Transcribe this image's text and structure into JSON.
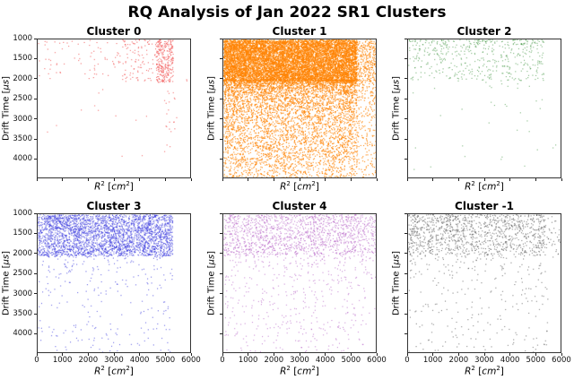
{
  "figure": {
    "background": "#ffffff"
  },
  "chart_data": {
    "type": "scatter",
    "suptitle": "RQ Analysis of Jan 2022 SR1 Clusters",
    "grid": {
      "rows": 2,
      "cols": 3
    },
    "axes": {
      "xlabel": {
        "var": "R",
        "var_exp": "2",
        "open": " [",
        "unit": "cm",
        "unit_exp": "2",
        "close": "]"
      },
      "ylabel": {
        "prefix": "Drift Time [",
        "unit": "μs",
        "suffix": "]"
      },
      "xlim": [
        0,
        6000
      ],
      "ylim": [
        4480,
        1000
      ],
      "y_inverted": true,
      "xticks": [
        0,
        1000,
        2000,
        3000,
        4000,
        5000,
        6000
      ],
      "yticks": [
        1000,
        1500,
        2000,
        2500,
        3000,
        3500,
        4000
      ],
      "xtick_labels_shown": "bottom row only",
      "ytick_labels_shown": "left column only",
      "grid_lines": false
    },
    "subplots": [
      {
        "title": "Cluster 0",
        "color": "#ee3333",
        "alpha": 0.55,
        "marker_px": 1.2,
        "seed": 11,
        "regions": [
          {
            "x0": 0,
            "x1": 5300,
            "y0": 1000,
            "y1": 2050,
            "n": 115,
            "bias": 1.2
          },
          {
            "x0": 3300,
            "x1": 4750,
            "y0": 1000,
            "y1": 2060,
            "n": 75,
            "bias": 1.1
          },
          {
            "x0": 4650,
            "x1": 5320,
            "y0": 1000,
            "y1": 2070,
            "n": 270,
            "bias": 1.0
          },
          {
            "x0": 4900,
            "x1": 5450,
            "y0": 2070,
            "y1": 3950,
            "n": 22,
            "bias": 1.2
          },
          {
            "x0": 300,
            "x1": 4600,
            "y0": 2100,
            "y1": 4050,
            "n": 12,
            "bias": 1.0
          },
          {
            "x0": 5820,
            "x1": 5880,
            "y0": 1980,
            "y1": 2040,
            "n": 2,
            "bias": 1.0
          }
        ]
      },
      {
        "title": "Cluster 1",
        "color": "#ff8405",
        "alpha": 0.78,
        "marker_px": 1.2,
        "seed": 22,
        "regions": [
          {
            "x0": 0,
            "x1": 5240,
            "y0": 1000,
            "y1": 2010,
            "n": 9500,
            "bias": 1.0
          },
          {
            "x0": 0,
            "x1": 5240,
            "y0": 2010,
            "y1": 4470,
            "n": 5200,
            "bias": 1.9
          },
          {
            "x0": 5240,
            "x1": 6000,
            "y0": 1000,
            "y1": 2010,
            "n": 280,
            "bias": 1.0
          },
          {
            "x0": 5240,
            "x1": 6000,
            "y0": 2010,
            "y1": 4470,
            "n": 230,
            "bias": 1.6
          }
        ]
      },
      {
        "title": "Cluster 2",
        "color": "#2f8b2f",
        "alpha": 0.5,
        "marker_px": 1.2,
        "seed": 33,
        "regions": [
          {
            "x0": 0,
            "x1": 5320,
            "y0": 1000,
            "y1": 2030,
            "n": 480,
            "bias": 1.5
          },
          {
            "x0": 0,
            "x1": 5320,
            "y0": 2030,
            "y1": 4300,
            "n": 34,
            "bias": 1.3
          },
          {
            "x0": 5500,
            "x1": 5900,
            "y0": 3600,
            "y1": 4000,
            "n": 2,
            "bias": 1.0
          }
        ]
      },
      {
        "title": "Cluster 3",
        "color": "#3333dd",
        "alpha": 0.55,
        "marker_px": 1.2,
        "seed": 44,
        "regions": [
          {
            "x0": 0,
            "x1": 5290,
            "y0": 1000,
            "y1": 2040,
            "n": 3100,
            "bias": 1.0
          },
          {
            "x0": 0,
            "x1": 5290,
            "y0": 2040,
            "y1": 4480,
            "n": 260,
            "bias": 1.6
          }
        ]
      },
      {
        "title": "Cluster 4",
        "color": "#ad4fbf",
        "alpha": 0.5,
        "marker_px": 1.2,
        "seed": 55,
        "regions": [
          {
            "x0": 0,
            "x1": 5300,
            "y0": 1000,
            "y1": 2010,
            "n": 1280,
            "bias": 1.05
          },
          {
            "x0": 5300,
            "x1": 6000,
            "y0": 1000,
            "y1": 2010,
            "n": 130,
            "bias": 1.0
          },
          {
            "x0": 0,
            "x1": 5600,
            "y0": 2010,
            "y1": 4480,
            "n": 450,
            "bias": 1.4
          },
          {
            "x0": 5600,
            "x1": 6000,
            "y0": 2010,
            "y1": 3500,
            "n": 15,
            "bias": 1.0
          }
        ]
      },
      {
        "title": "Cluster -1",
        "color": "#404040",
        "alpha": 0.5,
        "marker_px": 1.2,
        "seed": 66,
        "regions": [
          {
            "x0": 0,
            "x1": 5380,
            "y0": 1000,
            "y1": 2010,
            "n": 1100,
            "bias": 1.15
          },
          {
            "x0": 5380,
            "x1": 6000,
            "y0": 1000,
            "y1": 2100,
            "n": 35,
            "bias": 1.0
          },
          {
            "x0": 0,
            "x1": 5500,
            "y0": 2010,
            "y1": 4480,
            "n": 270,
            "bias": 1.4
          }
        ]
      }
    ]
  }
}
